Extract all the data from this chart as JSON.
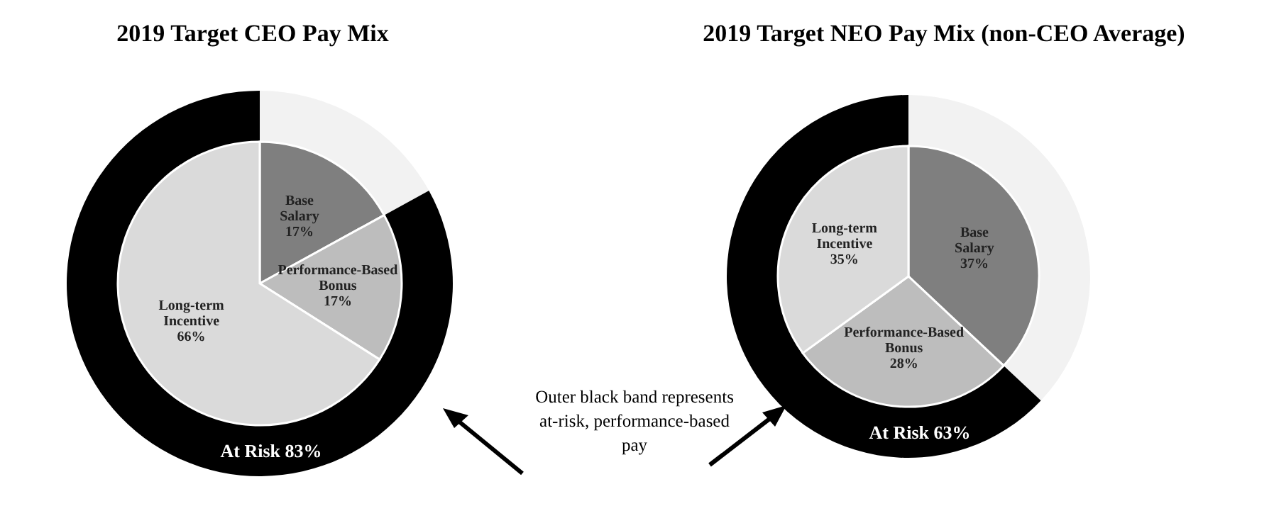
{
  "chart_data": [
    {
      "type": "pie",
      "title": "2019 Target CEO Pay Mix",
      "categories": [
        "Base Salary",
        "Performance-Based Bonus",
        "Long-term Incentive"
      ],
      "values": [
        17,
        17,
        66
      ],
      "colors": [
        "#7f7f7f",
        "#bdbdbd",
        "#dadada"
      ],
      "value_labels": [
        "17%",
        "17%",
        "66%"
      ],
      "annotations": [
        "Outer black band represents at-risk, performance-based pay"
      ]
    },
    {
      "type": "donut",
      "categories": [
        null,
        "At Risk"
      ],
      "values": [
        17,
        83
      ],
      "colors": [
        "#f2f2f2",
        "#000000"
      ],
      "value_labels": [
        null,
        "83%"
      ]
    },
    {
      "type": "pie",
      "title": "2019 Target NEO Pay Mix (non-CEO Average)",
      "categories": [
        "Base Salary",
        "Performance-Based Bonus",
        "Long-term Incentive"
      ],
      "values": [
        37,
        28,
        35
      ],
      "colors": [
        "#7f7f7f",
        "#bdbdbd",
        "#dadada"
      ],
      "value_labels": [
        "37%",
        "28%",
        "35%"
      ]
    },
    {
      "type": "donut",
      "categories": [
        null,
        "At Risk"
      ],
      "values": [
        37,
        63
      ],
      "colors": [
        "#f2f2f2",
        "#000000"
      ],
      "value_labels": [
        null,
        "63%"
      ]
    }
  ]
}
